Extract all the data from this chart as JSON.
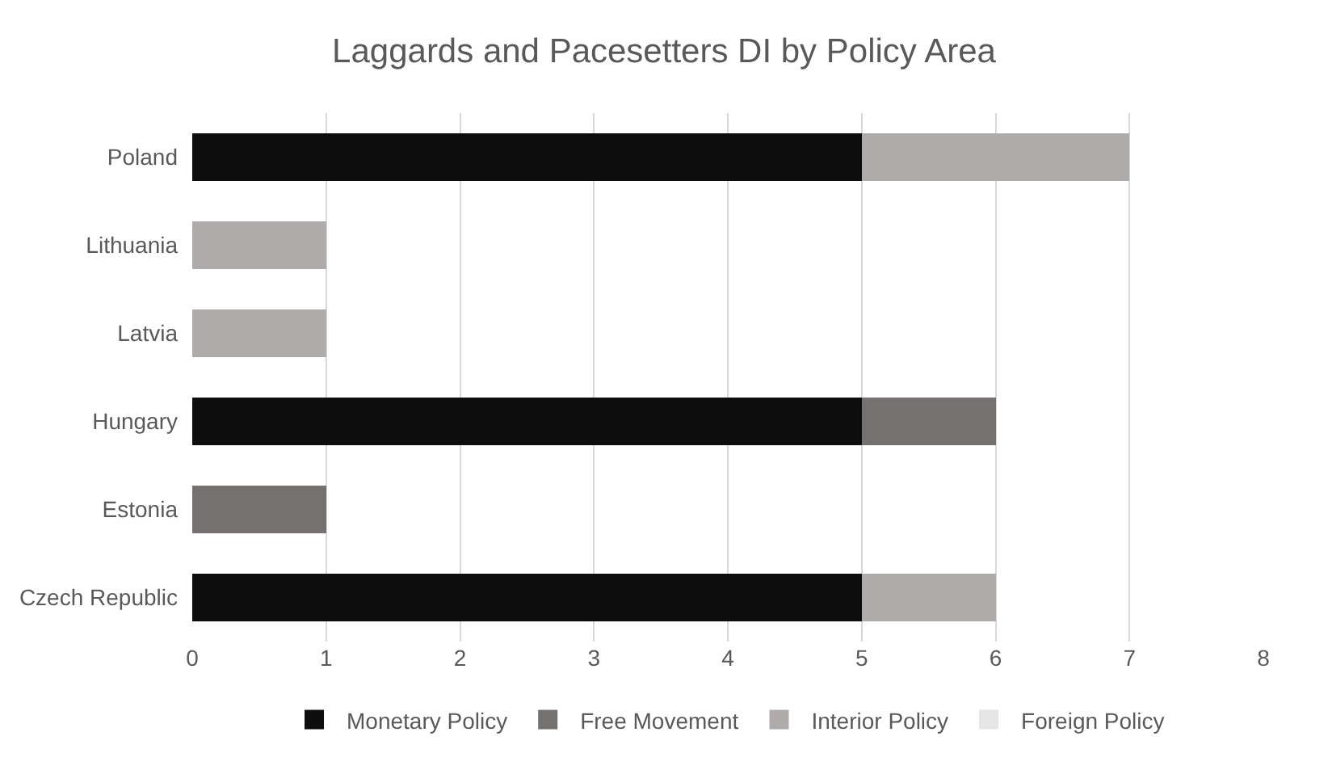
{
  "chart_data": {
    "type": "bar",
    "orientation": "horizontal",
    "stacked": true,
    "title": "Laggards and Pacesetters DI by Policy Area",
    "categories": [
      "Poland",
      "Lithuania",
      "Latvia",
      "Hungary",
      "Estonia",
      "Czech Republic"
    ],
    "series": [
      {
        "name": "Monetary Policy",
        "color": "#0d0d0d",
        "values": [
          5,
          null,
          null,
          5,
          null,
          5
        ]
      },
      {
        "name": "Free Movement",
        "color": "#767171",
        "values": [
          null,
          null,
          null,
          1,
          1,
          null
        ]
      },
      {
        "name": "Interior Policy",
        "color": "#afabab",
        "values": [
          2,
          1,
          1,
          null,
          null,
          1
        ]
      },
      {
        "name": "Foreign Policy",
        "color": "#e7e6e6",
        "values": [
          null,
          null,
          null,
          null,
          null,
          null
        ]
      }
    ],
    "xlim": [
      0,
      8
    ],
    "xticks": [
      0,
      1,
      2,
      3,
      4,
      5,
      6,
      7,
      8
    ],
    "grid": "x",
    "legend": "bottom"
  }
}
